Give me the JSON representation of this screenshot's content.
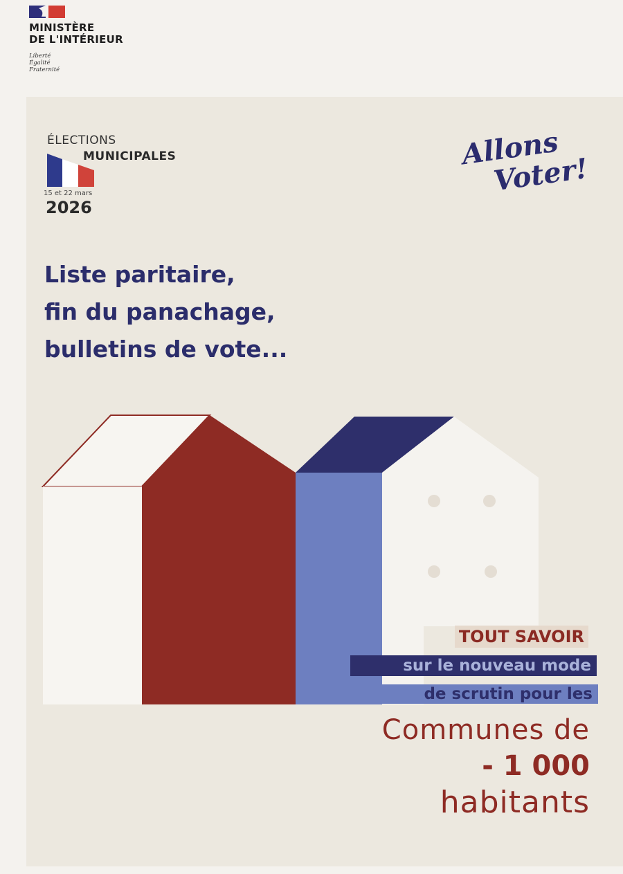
{
  "ministry": {
    "name_line1": "MINISTÈRE",
    "name_line2": "DE L'INTÉRIEUR",
    "motto": [
      "Liberté",
      "Égalité",
      "Fraternité"
    ]
  },
  "election": {
    "line1": "ÉLECTIONS",
    "line2": "MUNICIPALES",
    "dates": "15 et 22 mars",
    "year": "2026"
  },
  "slogan": {
    "line1": "Allons",
    "line2": "Voter!"
  },
  "headline": [
    "Liste paritaire,",
    "fin du panachage,",
    "bulletins de vote..."
  ],
  "callout": {
    "line1": "TOUT SAVOIR",
    "line2": "sur le nouveau mode",
    "line3": "de scrutin pour les",
    "line4": "Communes de",
    "line5": "- 1 000",
    "line6": "habitants"
  },
  "colors": {
    "navy": "#2e2f6b",
    "red": "#8e2b24",
    "blue": "#6d7fc0",
    "paper": "#ece8df"
  }
}
